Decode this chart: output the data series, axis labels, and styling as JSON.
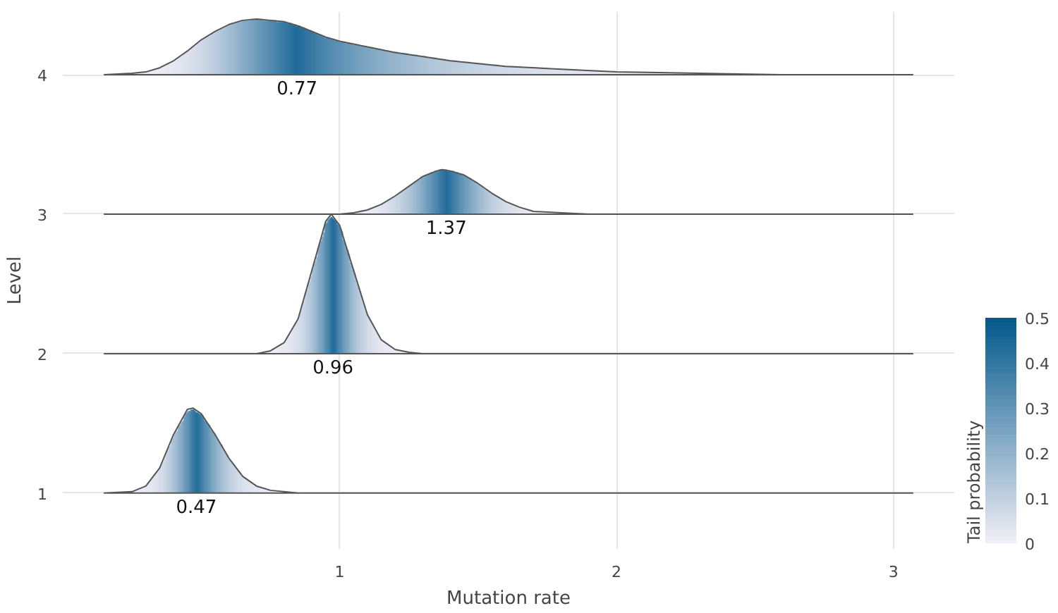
{
  "chart_data": {
    "type": "area",
    "xlabel": "Mutation rate",
    "ylabel": "Level",
    "clabel": "Tail probability",
    "clim": [
      0,
      0.5
    ],
    "cticks": [
      0,
      0.1,
      0.2,
      0.3,
      0.4,
      0.5
    ],
    "xlim": [
      0.0,
      3.22
    ],
    "xticks": [
      1,
      2,
      3
    ],
    "ylim": [
      0.6,
      4.45
    ],
    "yticks": [
      1,
      2,
      3,
      4
    ],
    "grid": true,
    "series": [
      {
        "color": "#f0eef6",
        "x": [
          0.15,
          0.25,
          0.3,
          0.35,
          0.4,
          0.45,
          0.47,
          0.5,
          0.55,
          0.6,
          0.65,
          0.7,
          0.75,
          0.85,
          3.07
        ],
        "values": [
          1,
          1.01,
          1.05,
          1.18,
          1.42,
          1.6,
          1.61,
          1.57,
          1.42,
          1.25,
          1.12,
          1.05,
          1.02,
          1,
          1
        ]
      },
      {
        "color": "#f0eef6",
        "x": [
          0.15,
          0.7,
          0.75,
          0.8,
          0.85,
          0.9,
          0.95,
          0.97,
          1.0,
          1.05,
          1.1,
          1.15,
          1.2,
          1.25,
          1.3,
          3.07
        ],
        "values": [
          2,
          2,
          2.02,
          2.08,
          2.25,
          2.6,
          2.95,
          3.0,
          2.92,
          2.6,
          2.28,
          2.1,
          2.03,
          2.01,
          2,
          2
        ]
      },
      {
        "color": "#f0eef6",
        "x": [
          0.15,
          1.0,
          1.05,
          1.1,
          1.15,
          1.2,
          1.25,
          1.3,
          1.35,
          1.37,
          1.4,
          1.45,
          1.5,
          1.55,
          1.6,
          1.65,
          1.7,
          1.8,
          1.9,
          3.07
        ],
        "values": [
          3,
          3,
          3.01,
          3.03,
          3.07,
          3.13,
          3.2,
          3.27,
          3.31,
          3.32,
          3.31,
          3.28,
          3.22,
          3.15,
          3.09,
          3.05,
          3.02,
          3.01,
          3,
          3
        ]
      },
      {
        "color": "#f0eef6",
        "x": [
          0.15,
          0.25,
          0.3,
          0.35,
          0.4,
          0.45,
          0.5,
          0.55,
          0.6,
          0.65,
          0.7,
          0.75,
          0.8,
          0.85,
          0.9,
          0.95,
          1.0,
          1.1,
          1.2,
          1.3,
          1.4,
          1.5,
          1.6,
          1.8,
          2.0,
          2.3,
          2.6,
          3.0,
          3.07
        ],
        "values": [
          4,
          4.01,
          4.02,
          4.05,
          4.1,
          4.17,
          4.25,
          4.31,
          4.36,
          4.39,
          4.4,
          4.39,
          4.38,
          4.35,
          4.31,
          4.27,
          4.24,
          4.2,
          4.16,
          4.13,
          4.1,
          4.08,
          4.06,
          4.04,
          4.02,
          4.01,
          4,
          4,
          4
        ]
      }
    ],
    "annotations": [
      "0.47",
      "0.96",
      "1.37",
      "0.77"
    ]
  }
}
